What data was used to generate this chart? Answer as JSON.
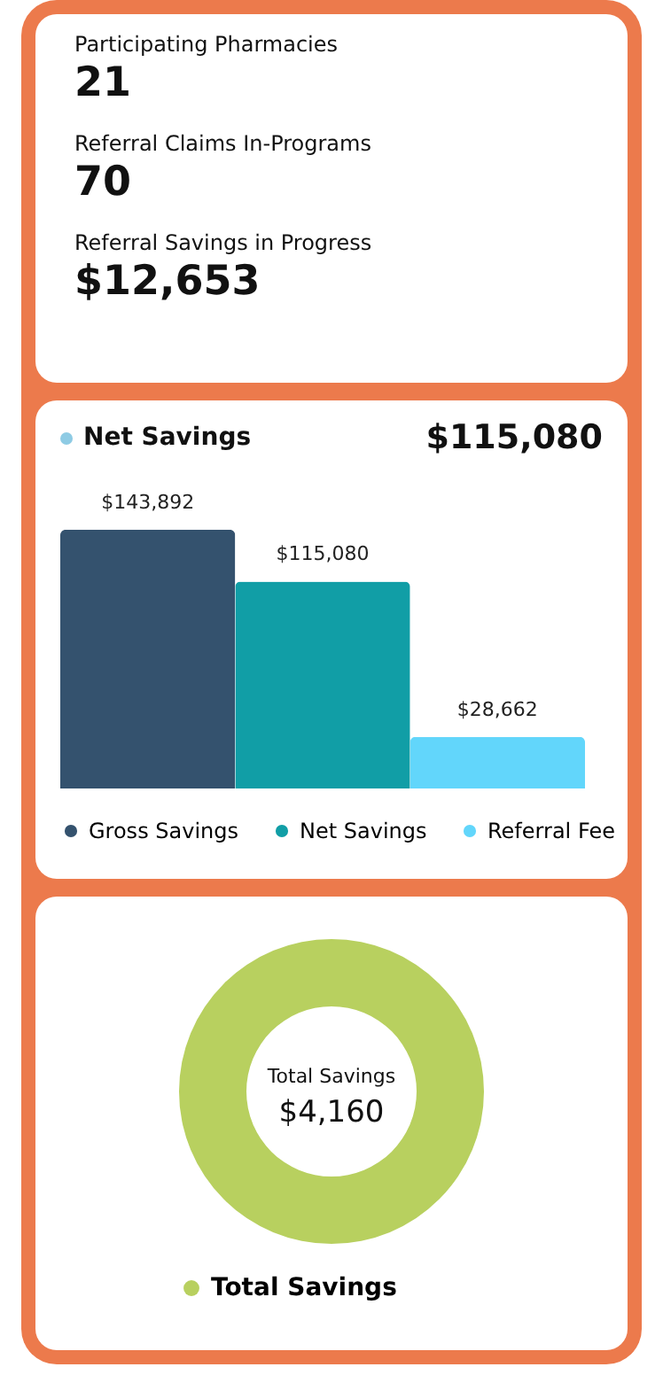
{
  "chart_data": [
    {
      "type": "other",
      "annotations": [
        "Participating Pharmacies",
        "21",
        "Referral Claims In-Programs",
        "70",
        "Referral Savings in Progress",
        "$12,653"
      ]
    },
    {
      "type": "bar",
      "title": "Net Savings",
      "subtitle": "$115,080",
      "categories": [
        null,
        null,
        null
      ],
      "stacked": true,
      "legend": "bottom",
      "series": [
        {
          "name": "Gross Savings",
          "color": "#34526e",
          "values": [
            143892,
            null,
            null
          ],
          "value_labels": [
            "$143,892",
            null,
            null
          ]
        },
        {
          "name": "Net Savings",
          "color": "#119ea6",
          "values": [
            null,
            115080,
            null
          ],
          "value_labels": [
            null,
            "$115,080",
            null
          ]
        },
        {
          "name": "Referral Fee",
          "color": "#62d6fb",
          "values": [
            null,
            null,
            28662
          ],
          "value_labels": [
            null,
            null,
            "$28,662"
          ]
        }
      ]
    },
    {
      "type": "donut",
      "categories": [
        "Total Savings"
      ],
      "values": [
        100
      ],
      "colors": [
        "#b8d05f"
      ],
      "annotations": [
        "Total Savings",
        "$4,160"
      ],
      "legend": "bottom"
    }
  ]
}
